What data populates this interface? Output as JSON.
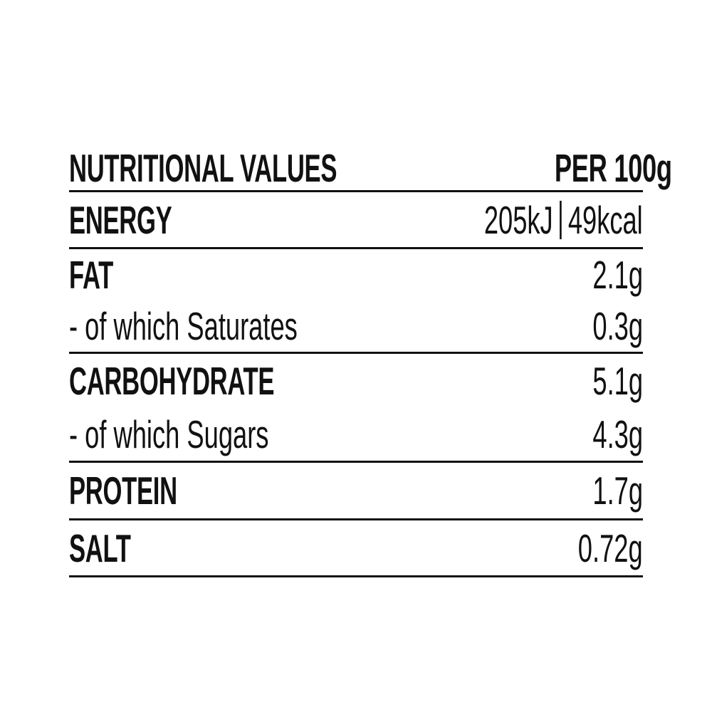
{
  "card": {
    "header": {
      "title": "NUTRITIONAL VALUES",
      "per": "PER 100g"
    },
    "energy": {
      "label": "ENERGY",
      "kj": "205kJ",
      "kcal": "49kcal"
    },
    "fat": {
      "label": "FAT",
      "value": "2.1g"
    },
    "saturates": {
      "label": "- of which Saturates",
      "value": "0.3g"
    },
    "carbohydrate": {
      "label": "CARBOHYDRATE",
      "value": "5.1g"
    },
    "sugars": {
      "label": "- of which Sugars",
      "value": "4.3g"
    },
    "protein": {
      "label": "PROTEIN",
      "value": "1.7g"
    },
    "salt": {
      "label": "SALT",
      "value": "0.72g"
    },
    "colors": {
      "text": "#111111",
      "line": "#111111",
      "background": "#ffffff"
    }
  }
}
